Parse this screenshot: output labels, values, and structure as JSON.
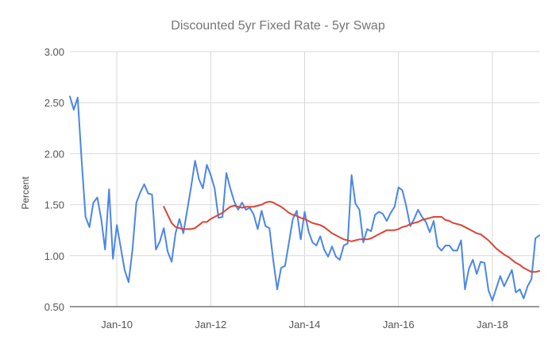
{
  "chart_data": {
    "type": "line",
    "title": "Discounted 5yr Fixed Rate - 5yr Swap",
    "xlabel": "",
    "ylabel": "Percent",
    "ylim": [
      0.5,
      3.0
    ],
    "yticks": [
      0.5,
      1.0,
      1.5,
      2.0,
      2.5,
      3.0
    ],
    "ytick_labels": [
      "0.50",
      "1.00",
      "1.50",
      "2.00",
      "2.50",
      "3.00"
    ],
    "xlim": [
      "2009-01",
      "2019-01"
    ],
    "xticks": [
      "2010-01",
      "2012-01",
      "2014-01",
      "2016-01",
      "2018-01"
    ],
    "xtick_labels": [
      "Jan-10",
      "Jan-12",
      "Jan-14",
      "Jan-16",
      "Jan-18"
    ],
    "grid": true,
    "legend": "none",
    "series": [
      {
        "color": "#4a86e8",
        "points": [
          [
            "2009-01",
            2.56
          ],
          [
            "2009-02",
            2.43
          ],
          [
            "2009-03",
            2.55
          ],
          [
            "2009-04",
            1.93
          ],
          [
            "2009-05",
            1.38
          ],
          [
            "2009-06",
            1.28
          ],
          [
            "2009-07",
            1.52
          ],
          [
            "2009-08",
            1.57
          ],
          [
            "2009-09",
            1.36
          ],
          [
            "2009-10",
            1.06
          ],
          [
            "2009-11",
            1.65
          ],
          [
            "2009-12",
            0.97
          ],
          [
            "2010-01",
            1.3
          ],
          [
            "2010-02",
            1.08
          ],
          [
            "2010-03",
            0.86
          ],
          [
            "2010-04",
            0.74
          ],
          [
            "2010-05",
            1.06
          ],
          [
            "2010-06",
            1.52
          ],
          [
            "2010-07",
            1.62
          ],
          [
            "2010-08",
            1.7
          ],
          [
            "2010-09",
            1.61
          ],
          [
            "2010-10",
            1.6
          ],
          [
            "2010-11",
            1.06
          ],
          [
            "2010-12",
            1.14
          ],
          [
            "2011-01",
            1.27
          ],
          [
            "2011-02",
            1.04
          ],
          [
            "2011-03",
            0.94
          ],
          [
            "2011-04",
            1.22
          ],
          [
            "2011-05",
            1.36
          ],
          [
            "2011-06",
            1.22
          ],
          [
            "2011-07",
            1.45
          ],
          [
            "2011-08",
            1.68
          ],
          [
            "2011-09",
            1.93
          ],
          [
            "2011-10",
            1.75
          ],
          [
            "2011-11",
            1.66
          ],
          [
            "2011-12",
            1.89
          ],
          [
            "2012-01",
            1.79
          ],
          [
            "2012-02",
            1.66
          ],
          [
            "2012-03",
            1.37
          ],
          [
            "2012-04",
            1.38
          ],
          [
            "2012-05",
            1.81
          ],
          [
            "2012-06",
            1.66
          ],
          [
            "2012-07",
            1.53
          ],
          [
            "2012-08",
            1.45
          ],
          [
            "2012-09",
            1.52
          ],
          [
            "2012-10",
            1.45
          ],
          [
            "2012-11",
            1.47
          ],
          [
            "2012-12",
            1.4
          ],
          [
            "2013-01",
            1.26
          ],
          [
            "2013-02",
            1.44
          ],
          [
            "2013-03",
            1.29
          ],
          [
            "2013-04",
            1.27
          ],
          [
            "2013-05",
            0.95
          ],
          [
            "2013-06",
            0.67
          ],
          [
            "2013-07",
            0.88
          ],
          [
            "2013-08",
            0.9
          ],
          [
            "2013-09",
            1.13
          ],
          [
            "2013-10",
            1.36
          ],
          [
            "2013-11",
            1.44
          ],
          [
            "2013-12",
            1.16
          ],
          [
            "2014-01",
            1.43
          ],
          [
            "2014-02",
            1.24
          ],
          [
            "2014-03",
            1.13
          ],
          [
            "2014-04",
            1.1
          ],
          [
            "2014-05",
            1.19
          ],
          [
            "2014-06",
            1.06
          ],
          [
            "2014-07",
            0.99
          ],
          [
            "2014-08",
            1.09
          ],
          [
            "2014-09",
            0.99
          ],
          [
            "2014-10",
            0.96
          ],
          [
            "2014-11",
            1.1
          ],
          [
            "2014-12",
            1.12
          ],
          [
            "2015-01",
            1.79
          ],
          [
            "2015-02",
            1.51
          ],
          [
            "2015-03",
            1.45
          ],
          [
            "2015-04",
            1.13
          ],
          [
            "2015-05",
            1.26
          ],
          [
            "2015-06",
            1.24
          ],
          [
            "2015-07",
            1.4
          ],
          [
            "2015-08",
            1.43
          ],
          [
            "2015-09",
            1.41
          ],
          [
            "2015-10",
            1.34
          ],
          [
            "2015-11",
            1.42
          ],
          [
            "2015-12",
            1.48
          ],
          [
            "2016-01",
            1.67
          ],
          [
            "2016-02",
            1.64
          ],
          [
            "2016-03",
            1.48
          ],
          [
            "2016-04",
            1.29
          ],
          [
            "2016-05",
            1.36
          ],
          [
            "2016-06",
            1.45
          ],
          [
            "2016-07",
            1.38
          ],
          [
            "2016-08",
            1.33
          ],
          [
            "2016-09",
            1.23
          ],
          [
            "2016-10",
            1.34
          ],
          [
            "2016-11",
            1.09
          ],
          [
            "2016-12",
            1.05
          ],
          [
            "2017-01",
            1.1
          ],
          [
            "2017-02",
            1.1
          ],
          [
            "2017-03",
            1.05
          ],
          [
            "2017-04",
            1.05
          ],
          [
            "2017-05",
            1.15
          ],
          [
            "2017-06",
            0.67
          ],
          [
            "2017-07",
            0.87
          ],
          [
            "2017-08",
            0.96
          ],
          [
            "2017-09",
            0.82
          ],
          [
            "2017-10",
            0.94
          ],
          [
            "2017-11",
            0.93
          ],
          [
            "2017-12",
            0.66
          ],
          [
            "2018-01",
            0.56
          ],
          [
            "2018-02",
            0.68
          ],
          [
            "2018-03",
            0.8
          ],
          [
            "2018-04",
            0.7
          ],
          [
            "2018-05",
            0.78
          ],
          [
            "2018-06",
            0.86
          ],
          [
            "2018-07",
            0.64
          ],
          [
            "2018-08",
            0.67
          ],
          [
            "2018-09",
            0.58
          ],
          [
            "2018-10",
            0.7
          ],
          [
            "2018-11",
            0.77
          ],
          [
            "2018-12",
            1.17
          ],
          [
            "2019-01",
            1.2
          ]
        ]
      },
      {
        "color": "#db4437",
        "points": [
          [
            "2011-01",
            1.48
          ],
          [
            "2011-02",
            1.4
          ],
          [
            "2011-03",
            1.32
          ],
          [
            "2011-04",
            1.28
          ],
          [
            "2011-05",
            1.27
          ],
          [
            "2011-06",
            1.26
          ],
          [
            "2011-07",
            1.26
          ],
          [
            "2011-08",
            1.26
          ],
          [
            "2011-09",
            1.27
          ],
          [
            "2011-10",
            1.3
          ],
          [
            "2011-11",
            1.33
          ],
          [
            "2011-12",
            1.33
          ],
          [
            "2012-01",
            1.36
          ],
          [
            "2012-02",
            1.38
          ],
          [
            "2012-03",
            1.4
          ],
          [
            "2012-04",
            1.42
          ],
          [
            "2012-05",
            1.45
          ],
          [
            "2012-06",
            1.48
          ],
          [
            "2012-07",
            1.49
          ],
          [
            "2012-08",
            1.48
          ],
          [
            "2012-09",
            1.47
          ],
          [
            "2012-10",
            1.48
          ],
          [
            "2012-11",
            1.48
          ],
          [
            "2012-12",
            1.48
          ],
          [
            "2013-01",
            1.49
          ],
          [
            "2013-02",
            1.5
          ],
          [
            "2013-03",
            1.52
          ],
          [
            "2013-04",
            1.53
          ],
          [
            "2013-05",
            1.52
          ],
          [
            "2013-06",
            1.5
          ],
          [
            "2013-07",
            1.48
          ],
          [
            "2013-08",
            1.45
          ],
          [
            "2013-09",
            1.42
          ],
          [
            "2013-10",
            1.4
          ],
          [
            "2013-11",
            1.39
          ],
          [
            "2013-12",
            1.37
          ],
          [
            "2014-01",
            1.36
          ],
          [
            "2014-02",
            1.34
          ],
          [
            "2014-03",
            1.32
          ],
          [
            "2014-04",
            1.31
          ],
          [
            "2014-05",
            1.3
          ],
          [
            "2014-06",
            1.28
          ],
          [
            "2014-07",
            1.25
          ],
          [
            "2014-08",
            1.22
          ],
          [
            "2014-09",
            1.2
          ],
          [
            "2014-10",
            1.18
          ],
          [
            "2014-11",
            1.16
          ],
          [
            "2014-12",
            1.15
          ],
          [
            "2015-01",
            1.14
          ],
          [
            "2015-02",
            1.15
          ],
          [
            "2015-03",
            1.16
          ],
          [
            "2015-04",
            1.16
          ],
          [
            "2015-05",
            1.16
          ],
          [
            "2015-06",
            1.17
          ],
          [
            "2015-07",
            1.19
          ],
          [
            "2015-08",
            1.21
          ],
          [
            "2015-09",
            1.23
          ],
          [
            "2015-10",
            1.25
          ],
          [
            "2015-11",
            1.25
          ],
          [
            "2015-12",
            1.25
          ],
          [
            "2016-01",
            1.26
          ],
          [
            "2016-02",
            1.28
          ],
          [
            "2016-03",
            1.29
          ],
          [
            "2016-04",
            1.31
          ],
          [
            "2016-05",
            1.32
          ],
          [
            "2016-06",
            1.33
          ],
          [
            "2016-07",
            1.35
          ],
          [
            "2016-08",
            1.36
          ],
          [
            "2016-09",
            1.37
          ],
          [
            "2016-10",
            1.38
          ],
          [
            "2016-11",
            1.38
          ],
          [
            "2016-12",
            1.38
          ],
          [
            "2017-01",
            1.35
          ],
          [
            "2017-02",
            1.34
          ],
          [
            "2017-03",
            1.32
          ],
          [
            "2017-04",
            1.31
          ],
          [
            "2017-05",
            1.3
          ],
          [
            "2017-06",
            1.28
          ],
          [
            "2017-07",
            1.26
          ],
          [
            "2017-08",
            1.24
          ],
          [
            "2017-09",
            1.22
          ],
          [
            "2017-10",
            1.21
          ],
          [
            "2017-11",
            1.18
          ],
          [
            "2017-12",
            1.15
          ],
          [
            "2018-01",
            1.11
          ],
          [
            "2018-02",
            1.07
          ],
          [
            "2018-03",
            1.04
          ],
          [
            "2018-04",
            1.01
          ],
          [
            "2018-05",
            0.99
          ],
          [
            "2018-06",
            0.96
          ],
          [
            "2018-07",
            0.93
          ],
          [
            "2018-08",
            0.91
          ],
          [
            "2018-09",
            0.88
          ],
          [
            "2018-10",
            0.86
          ],
          [
            "2018-11",
            0.84
          ],
          [
            "2018-12",
            0.84
          ],
          [
            "2019-01",
            0.85
          ]
        ]
      }
    ]
  }
}
